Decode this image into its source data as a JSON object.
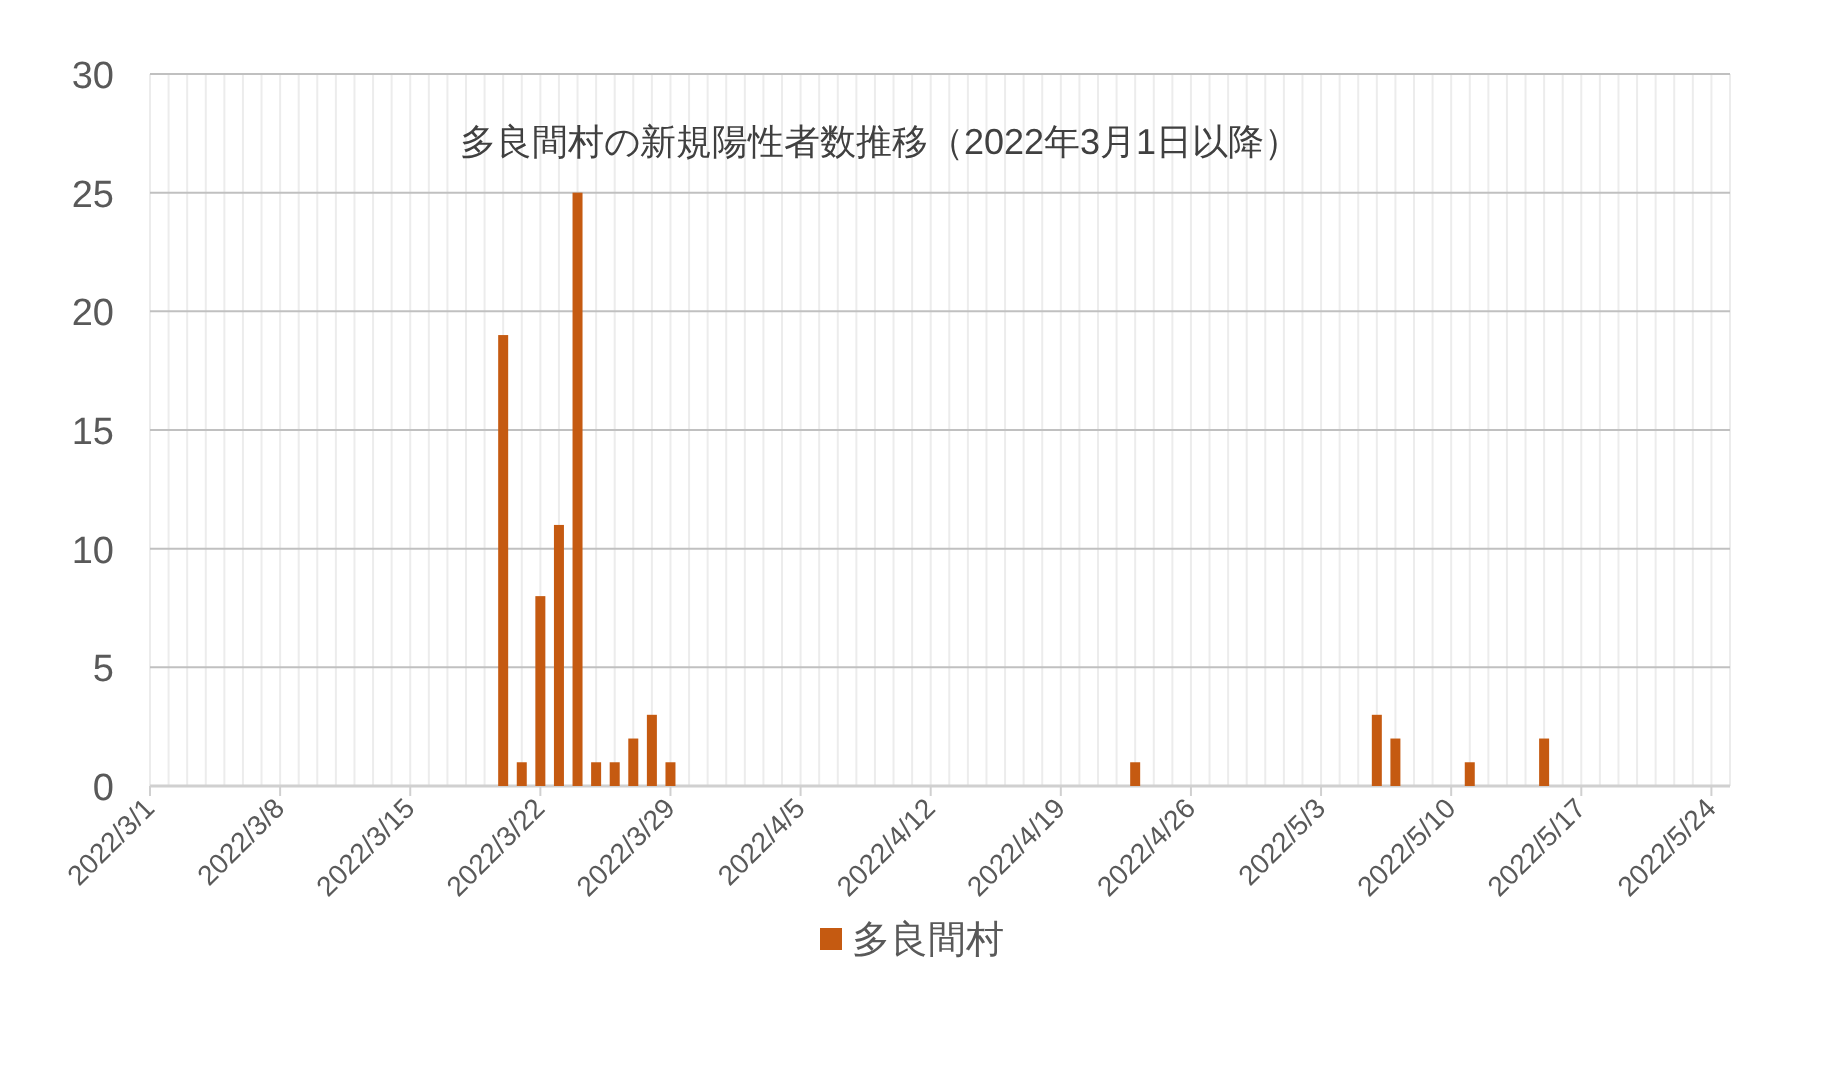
{
  "chart_data": {
    "type": "bar",
    "title": "多良間村の新規陽性者数推移（2022年3月1日以降）",
    "x": [
      "2022-03-20",
      "2022-03-21",
      "2022-03-22",
      "2022-03-23",
      "2022-03-24",
      "2022-03-25",
      "2022-03-26",
      "2022-03-27",
      "2022-03-28",
      "2022-03-29",
      "2022-04-23",
      "2022-05-06",
      "2022-05-07",
      "2022-05-11",
      "2022-05-15"
    ],
    "series": [
      {
        "name": "多良間村",
        "color": "#c55a11",
        "values": [
          19,
          1,
          8,
          11,
          25,
          1,
          1,
          2,
          3,
          1,
          1,
          3,
          2,
          1,
          2
        ]
      }
    ],
    "xlim": [
      "2022-03-01",
      "2022-05-25"
    ],
    "xticks": [
      {
        "value": "2022-03-01",
        "label": "2022/3/1"
      },
      {
        "value": "2022-03-08",
        "label": "2022/3/8"
      },
      {
        "value": "2022-03-15",
        "label": "2022/3/15"
      },
      {
        "value": "2022-03-22",
        "label": "2022/3/22"
      },
      {
        "value": "2022-03-29",
        "label": "2022/3/29"
      },
      {
        "value": "2022-04-05",
        "label": "2022/4/5"
      },
      {
        "value": "2022-04-12",
        "label": "2022/4/12"
      },
      {
        "value": "2022-04-19",
        "label": "2022/4/19"
      },
      {
        "value": "2022-04-26",
        "label": "2022/4/26"
      },
      {
        "value": "2022-05-03",
        "label": "2022/5/3"
      },
      {
        "value": "2022-05-10",
        "label": "2022/5/10"
      },
      {
        "value": "2022-05-17",
        "label": "2022/5/17"
      },
      {
        "value": "2022-05-24",
        "label": "2022/5/24"
      }
    ],
    "ylim": [
      0,
      30
    ],
    "yticks": [
      0,
      5,
      10,
      15,
      20,
      25,
      30
    ],
    "grid": true,
    "legend": "bottom"
  }
}
